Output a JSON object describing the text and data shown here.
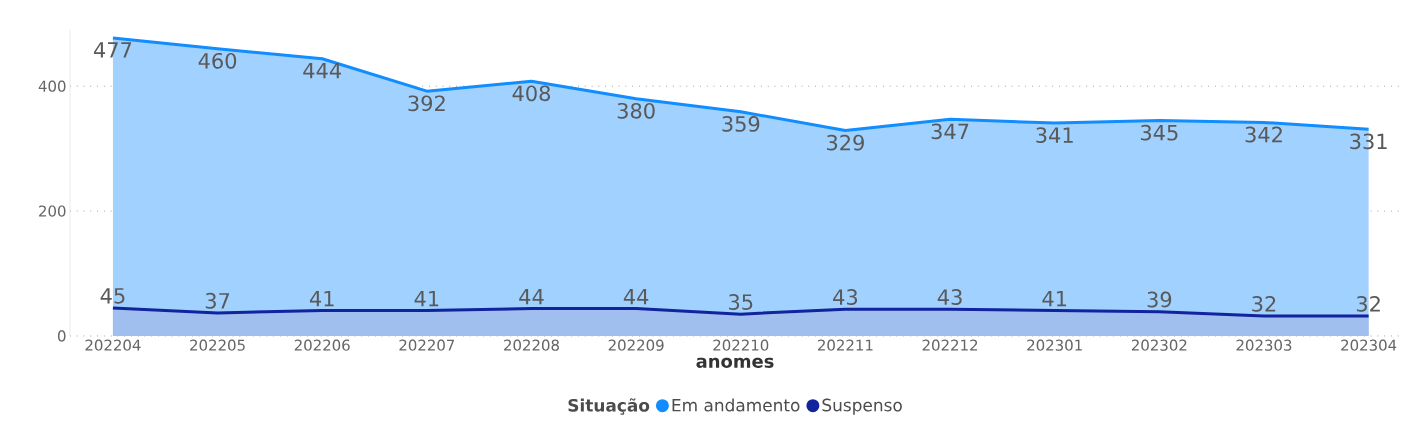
{
  "chart_data": {
    "type": "area",
    "xlabel": "anomes",
    "legend_title": "Situação",
    "categories": [
      "202204",
      "202205",
      "202206",
      "202207",
      "202208",
      "202209",
      "202210",
      "202211",
      "202212",
      "202301",
      "202302",
      "202303",
      "202304"
    ],
    "series": [
      {
        "name": "Em andamento",
        "color": "#118dff",
        "values": [
          477,
          460,
          444,
          392,
          408,
          380,
          359,
          329,
          347,
          341,
          345,
          342,
          331
        ]
      },
      {
        "name": "Suspenso",
        "color": "#12239e",
        "values": [
          45,
          37,
          41,
          41,
          44,
          44,
          35,
          43,
          43,
          41,
          39,
          32,
          32
        ]
      }
    ],
    "ylim": [
      0,
      490
    ],
    "yticks": [
      0,
      200,
      400
    ],
    "grid": "y",
    "legend": "bottom",
    "data_labels": true
  }
}
